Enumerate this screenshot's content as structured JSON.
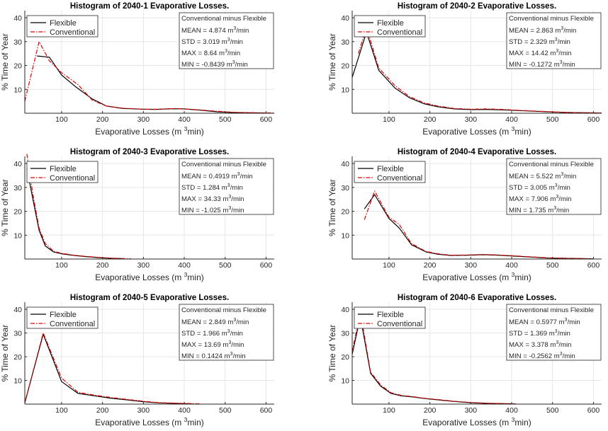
{
  "units": {
    "prefix": "m",
    "exp": "3",
    "suffix": "/min"
  },
  "legend_entries": [
    "Flexible",
    "Conventional"
  ],
  "colors": {
    "flexible": "#000000",
    "conventional": "#e00000",
    "grid": "#e6e6e6",
    "axis": "#262626"
  },
  "chart_data": [
    {
      "type": "line",
      "title": "Histogram of 2040-1 Evaporative Losses.",
      "xlabel": "Evaporative Losses (m 3/min)",
      "ylabel": "% Time of Year",
      "xlim": [
        10,
        620
      ],
      "ylim": [
        0,
        43
      ],
      "xticks": [
        100,
        200,
        300,
        400,
        500,
        600
      ],
      "yticks": [
        10,
        20,
        30,
        40
      ],
      "legend": "top-left",
      "grid": true,
      "series": [
        {
          "name": "Flexible",
          "style": "solid",
          "color": "#000000",
          "x": [
            40,
            70,
            100,
            135,
            175,
            210,
            250,
            300,
            330,
            370,
            400,
            440,
            480,
            520,
            560,
            600
          ],
          "y": [
            24,
            23.5,
            16,
            11,
            6,
            3,
            2,
            1.7,
            1.6,
            1.9,
            1.8,
            1.3,
            0.6,
            0.3,
            0.2,
            0.1
          ]
        },
        {
          "name": "Conventional",
          "style": "dashdot",
          "color": "#e00000",
          "x": [
            10,
            45,
            70,
            100,
            140,
            175,
            210,
            250,
            300,
            340,
            380,
            420,
            460,
            500,
            540,
            580,
            620
          ],
          "y": [
            5,
            30,
            22,
            17,
            12,
            5.5,
            3,
            2.1,
            1.7,
            1.7,
            2,
            1.6,
            1.1,
            0.6,
            0.3,
            0.2,
            0.1
          ]
        }
      ],
      "stats_box": {
        "header": "Conventional minus Flexible",
        "rows": [
          {
            "label": "MEAN",
            "value": "4.874"
          },
          {
            "label": "STD",
            "value": "3.019"
          },
          {
            "label": "MAX",
            "value": "8.64"
          },
          {
            "label": "MIN",
            "value": "-0.8439"
          }
        ]
      }
    },
    {
      "type": "line",
      "title": "Histogram of 2040-2 Evaporative Losses.",
      "xlabel": "Evaporative Losses (m 3/min)",
      "ylabel": "% Time of Year",
      "xlim": [
        10,
        620
      ],
      "ylim": [
        0,
        43
      ],
      "xticks": [
        100,
        200,
        300,
        400,
        500,
        600
      ],
      "yticks": [
        10,
        20,
        30,
        40
      ],
      "legend": "top-left",
      "grid": true,
      "series": [
        {
          "name": "Flexible",
          "style": "solid",
          "color": "#000000",
          "x": [
            10,
            45,
            75,
            115,
            150,
            185,
            220,
            260,
            300,
            340,
            380,
            420,
            460,
            500,
            540,
            580,
            620
          ],
          "y": [
            15,
            34,
            18,
            10.5,
            6.5,
            4,
            2.7,
            1.8,
            1.5,
            1.6,
            1.4,
            1.1,
            0.8,
            0.5,
            0.3,
            0.2,
            0.1
          ]
        },
        {
          "name": "Conventional",
          "style": "dashdot",
          "color": "#e00000",
          "x": [
            25,
            45,
            75,
            115,
            150,
            185,
            220,
            260,
            300,
            340,
            380,
            420,
            460,
            500,
            540,
            580,
            620
          ],
          "y": [
            25,
            36,
            19,
            11.5,
            7,
            4.4,
            3,
            2,
            1.7,
            1.8,
            1.6,
            1.2,
            0.9,
            0.6,
            0.3,
            0.2,
            0.1
          ]
        }
      ],
      "stats_box": {
        "header": "Conventional minus Flexible",
        "rows": [
          {
            "label": "MEAN",
            "value": "2.863"
          },
          {
            "label": "STD",
            "value": "2.329"
          },
          {
            "label": "MAX",
            "value": "14.42"
          },
          {
            "label": "MIN",
            "value": "-0.1272"
          }
        ]
      }
    },
    {
      "type": "line",
      "title": "Histogram of 2040-3 Evaporative Losses.",
      "xlabel": "Evaporative Losses (m 3/min)",
      "ylabel": "% Time of Year",
      "xlim": [
        10,
        620
      ],
      "ylim": [
        0,
        43
      ],
      "xticks": [
        100,
        200,
        300,
        400,
        500,
        600
      ],
      "yticks": [
        10,
        20,
        30,
        40
      ],
      "legend": "top-left",
      "grid": true,
      "series": [
        {
          "name": "Flexible",
          "style": "solid",
          "color": "#000000",
          "x": [
            15,
            30,
            45,
            60,
            80,
            100,
            130,
            160,
            190,
            220,
            250
          ],
          "y": [
            38,
            25,
            12,
            5.5,
            3,
            2.2,
            1.5,
            1,
            0.6,
            0.3,
            0.2
          ]
        },
        {
          "name": "Conventional",
          "style": "dashdot",
          "color": "#e00000",
          "x": [
            15,
            30,
            45,
            60,
            80,
            100,
            130,
            160,
            190,
            220,
            250,
            270
          ],
          "y": [
            44,
            27,
            13,
            6.5,
            3.3,
            2.4,
            1.6,
            1.1,
            0.7,
            0.4,
            0.2,
            0.1
          ]
        }
      ],
      "stats_box": {
        "header": "Conventional minus Flexible",
        "rows": [
          {
            "label": "MEAN",
            "value": "0.4919"
          },
          {
            "label": "STD",
            "value": "1.284"
          },
          {
            "label": "MAX",
            "value": "34.33"
          },
          {
            "label": "MIN",
            "value": "-1.025"
          }
        ]
      }
    },
    {
      "type": "line",
      "title": "Histogram of 2040-4 Evaporative Losses.",
      "xlabel": "Evaporative Losses (m 3/min)",
      "ylabel": "% Time of Year",
      "xlim": [
        10,
        620
      ],
      "ylim": [
        0,
        43
      ],
      "xticks": [
        100,
        200,
        300,
        400,
        500,
        600
      ],
      "yticks": [
        10,
        20,
        30,
        40
      ],
      "legend": "top-left",
      "grid": true,
      "series": [
        {
          "name": "Flexible",
          "style": "solid",
          "color": "#000000",
          "x": [
            40,
            65,
            100,
            125,
            155,
            190,
            220,
            250,
            290,
            330,
            370,
            410,
            450,
            490,
            530,
            570,
            600
          ],
          "y": [
            21,
            27,
            17,
            13,
            6,
            3,
            2,
            1.5,
            1.6,
            1.8,
            1.6,
            1.2,
            0.8,
            0.4,
            0.3,
            0.2,
            0.1
          ]
        },
        {
          "name": "Conventional",
          "style": "dashdot",
          "color": "#e00000",
          "x": [
            40,
            65,
            100,
            125,
            155,
            190,
            220,
            250,
            290,
            330,
            370,
            410,
            450,
            490,
            530,
            570,
            600
          ],
          "y": [
            16.5,
            28.5,
            17.5,
            14.5,
            6.5,
            3.2,
            2.2,
            1.6,
            1.7,
            1.9,
            1.7,
            1.3,
            0.9,
            0.5,
            0.3,
            0.2,
            0.1
          ]
        }
      ],
      "stats_box": {
        "header": "Conventional minus Flexible",
        "rows": [
          {
            "label": "MEAN",
            "value": "5.522"
          },
          {
            "label": "STD",
            "value": "3.005"
          },
          {
            "label": "MAX",
            "value": "7.906"
          },
          {
            "label": "MIN",
            "value": "1.735"
          }
        ]
      }
    },
    {
      "type": "line",
      "title": "Histogram of 2040-5 Evaporative Losses.",
      "xlabel": "Evaporative Losses (m 3/min)",
      "ylabel": "% Time of Year",
      "xlim": [
        10,
        620
      ],
      "ylim": [
        0,
        43
      ],
      "xticks": [
        100,
        200,
        300,
        400,
        500,
        600
      ],
      "yticks": [
        10,
        20,
        30,
        40
      ],
      "legend": "top-left",
      "grid": true,
      "series": [
        {
          "name": "Flexible",
          "style": "solid",
          "color": "#000000",
          "x": [
            10,
            55,
            100,
            140,
            180,
            220,
            260,
            300,
            340,
            380,
            420
          ],
          "y": [
            0.5,
            29.5,
            9.5,
            4.5,
            3.5,
            2.5,
            1.8,
            1,
            0.5,
            0.3,
            0.1
          ]
        },
        {
          "name": "Conventional",
          "style": "dashdot",
          "color": "#e00000",
          "x": [
            10,
            55,
            100,
            140,
            180,
            220,
            260,
            300,
            340,
            380,
            420,
            440
          ],
          "y": [
            0.5,
            30,
            11,
            5,
            3.8,
            2.8,
            2,
            1.2,
            0.6,
            0.4,
            0.2,
            0.1
          ]
        }
      ],
      "stats_box": {
        "header": "Conventional minus Flexible",
        "rows": [
          {
            "label": "MEAN",
            "value": "2.849"
          },
          {
            "label": "STD",
            "value": "1.966"
          },
          {
            "label": "MAX",
            "value": "13.69"
          },
          {
            "label": "MIN",
            "value": "0.1424"
          }
        ]
      }
    },
    {
      "type": "line",
      "title": "Histogram of 2040-6 Evaporative Losses.",
      "xlabel": "Evaporative Losses (m 3/min)",
      "ylabel": "% Time of Year",
      "xlim": [
        10,
        620
      ],
      "ylim": [
        0,
        43
      ],
      "xticks": [
        100,
        200,
        300,
        400,
        500,
        600
      ],
      "yticks": [
        10,
        20,
        30,
        40
      ],
      "legend": "top-left",
      "grid": true,
      "series": [
        {
          "name": "Flexible",
          "style": "solid",
          "color": "#000000",
          "x": [
            10,
            30,
            55,
            80,
            105,
            130,
            160,
            190,
            220,
            260,
            300,
            340,
            380,
            410
          ],
          "y": [
            21,
            37,
            13,
            7.5,
            4.5,
            3.5,
            3,
            2.3,
            1.8,
            1.1,
            0.6,
            0.3,
            0.2,
            0.1
          ]
        },
        {
          "name": "Conventional",
          "style": "dashdot",
          "color": "#e00000",
          "x": [
            10,
            30,
            55,
            80,
            105,
            130,
            160,
            190,
            220,
            260,
            300,
            340,
            380,
            410
          ],
          "y": [
            22,
            39,
            13.5,
            8,
            4.8,
            3.7,
            3.1,
            2.4,
            1.9,
            1.2,
            0.7,
            0.4,
            0.2,
            0.1
          ]
        }
      ],
      "stats_box": {
        "header": "Conventional minus Flexible",
        "rows": [
          {
            "label": "MEAN",
            "value": "0.5977"
          },
          {
            "label": "STD",
            "value": "1.369"
          },
          {
            "label": "MAX",
            "value": "3.378"
          },
          {
            "label": "MIN",
            "value": "-0.2562"
          }
        ]
      }
    }
  ]
}
